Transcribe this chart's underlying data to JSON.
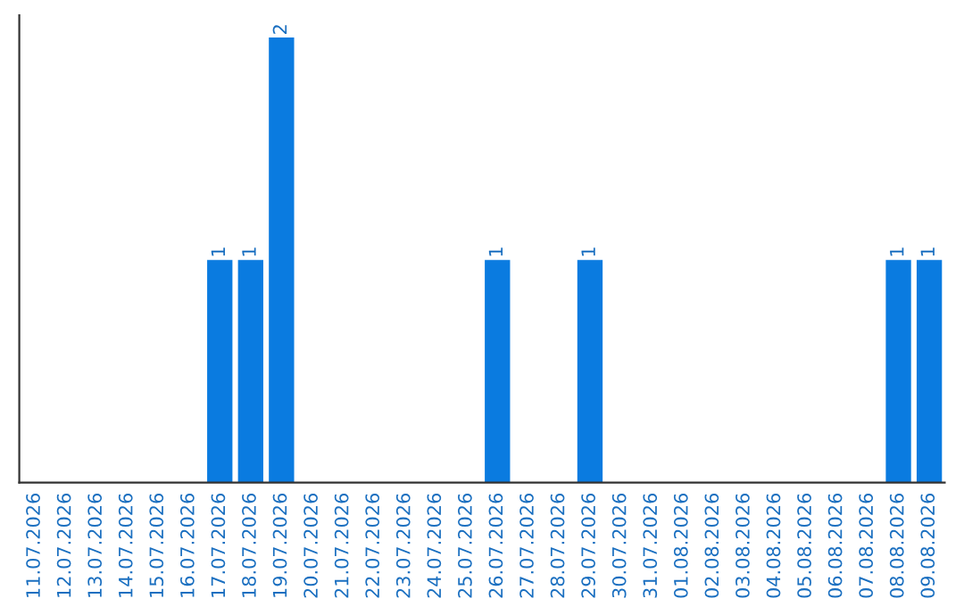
{
  "chart_data": {
    "type": "bar",
    "categories": [
      "11.07.2026",
      "12.07.2026",
      "13.07.2026",
      "14.07.2026",
      "15.07.2026",
      "16.07.2026",
      "17.07.2026",
      "18.07.2026",
      "19.07.2026",
      "20.07.2026",
      "21.07.2026",
      "22.07.2026",
      "23.07.2026",
      "24.07.2026",
      "25.07.2026",
      "26.07.2026",
      "27.07.2026",
      "28.07.2026",
      "29.07.2026",
      "30.07.2026",
      "31.07.2026",
      "01.08.2026",
      "02.08.2026",
      "03.08.2026",
      "04.08.2026",
      "05.08.2026",
      "06.08.2026",
      "07.08.2026",
      "08.08.2026",
      "09.08.2026"
    ],
    "values": [
      0,
      0,
      0,
      0,
      0,
      0,
      1,
      1,
      2,
      0,
      0,
      0,
      0,
      0,
      0,
      1,
      0,
      0,
      1,
      0,
      0,
      0,
      0,
      0,
      0,
      0,
      0,
      0,
      1,
      1
    ],
    "color": "#0a7be0",
    "ylim": [
      0,
      2.1
    ],
    "tick_labels": "x",
    "value_labels": [
      null,
      null,
      null,
      null,
      null,
      null,
      "1",
      "1",
      "2",
      null,
      null,
      null,
      null,
      null,
      null,
      "1",
      null,
      null,
      "1",
      null,
      null,
      null,
      null,
      null,
      null,
      null,
      null,
      null,
      "1",
      "1"
    ],
    "grid": false,
    "legend": false
  }
}
